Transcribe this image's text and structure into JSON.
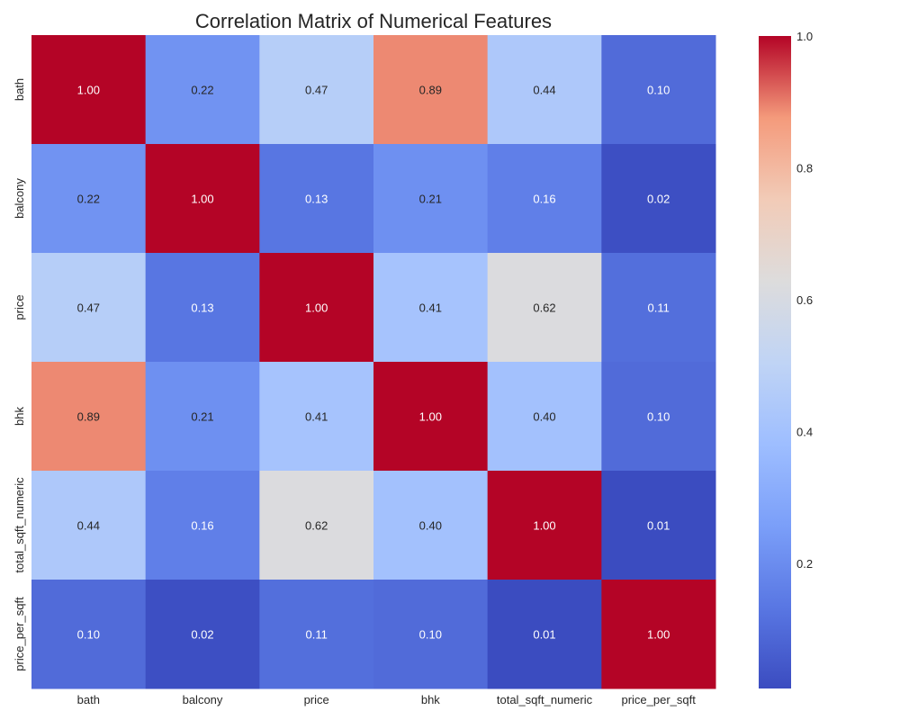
{
  "chart_data": {
    "type": "heatmap",
    "title": "Correlation Matrix of Numerical Features",
    "x_labels": [
      "bath",
      "balcony",
      "price",
      "bhk",
      "total_sqft_numeric",
      "price_per_sqft"
    ],
    "y_labels": [
      "bath",
      "balcony",
      "price",
      "bhk",
      "total_sqft_numeric",
      "price_per_sqft"
    ],
    "values": [
      [
        1.0,
        0.22,
        0.47,
        0.89,
        0.44,
        0.1
      ],
      [
        0.22,
        1.0,
        0.13,
        0.21,
        0.16,
        0.02
      ],
      [
        0.47,
        0.13,
        1.0,
        0.41,
        0.62,
        0.11
      ],
      [
        0.89,
        0.21,
        0.41,
        1.0,
        0.4,
        0.1
      ],
      [
        0.44,
        0.16,
        0.62,
        0.4,
        1.0,
        0.01
      ],
      [
        0.1,
        0.02,
        0.11,
        0.1,
        0.01,
        1.0
      ]
    ],
    "value_format": "0.00",
    "colormap": "coolwarm",
    "colorbar": {
      "min": 0.01,
      "max": 1.0,
      "ticks": [
        0.2,
        0.4,
        0.6,
        0.8,
        1.0
      ],
      "tick_labels": [
        "0.2",
        "0.4",
        "0.6",
        "0.8",
        "1.0"
      ]
    },
    "grid": false,
    "legend": "right colorbar"
  }
}
